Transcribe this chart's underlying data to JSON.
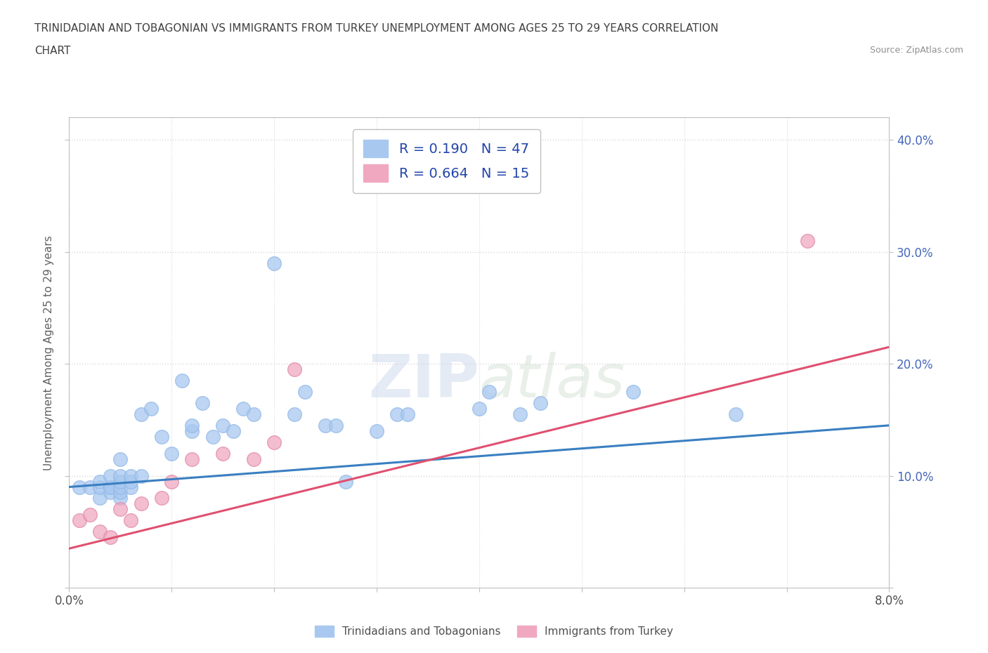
{
  "title_line1": "TRINIDADIAN AND TOBAGONIAN VS IMMIGRANTS FROM TURKEY UNEMPLOYMENT AMONG AGES 25 TO 29 YEARS CORRELATION",
  "title_line2": "CHART",
  "source_text": "Source: ZipAtlas.com",
  "ylabel": "Unemployment Among Ages 25 to 29 years",
  "xlim": [
    0.0,
    0.08
  ],
  "ylim": [
    0.0,
    0.42
  ],
  "xticks": [
    0.0,
    0.01,
    0.02,
    0.03,
    0.04,
    0.05,
    0.06,
    0.07,
    0.08
  ],
  "yticks": [
    0.0,
    0.1,
    0.2,
    0.3,
    0.4
  ],
  "legend_label1": "Trinidadians and Tobagonians",
  "legend_label2": "Immigrants from Turkey",
  "r1": "0.190",
  "n1": "47",
  "r2": "0.664",
  "n2": "15",
  "color1": "#a8c8f0",
  "color2": "#f0a8c0",
  "trendline1_color": "#3a7fc1",
  "trendline2_color": "#e05070",
  "watermark_zip": "ZIP",
  "watermark_atlas": "atlas",
  "scatter1_x": [
    0.001,
    0.002,
    0.003,
    0.003,
    0.003,
    0.004,
    0.004,
    0.004,
    0.004,
    0.005,
    0.005,
    0.005,
    0.005,
    0.005,
    0.005,
    0.006,
    0.006,
    0.006,
    0.007,
    0.007,
    0.008,
    0.009,
    0.01,
    0.011,
    0.012,
    0.012,
    0.013,
    0.014,
    0.015,
    0.016,
    0.017,
    0.018,
    0.02,
    0.022,
    0.023,
    0.025,
    0.026,
    0.027,
    0.03,
    0.032,
    0.033,
    0.04,
    0.041,
    0.044,
    0.046,
    0.055,
    0.065
  ],
  "scatter1_y": [
    0.09,
    0.09,
    0.08,
    0.09,
    0.095,
    0.09,
    0.085,
    0.09,
    0.1,
    0.08,
    0.085,
    0.09,
    0.095,
    0.1,
    0.115,
    0.09,
    0.095,
    0.1,
    0.155,
    0.1,
    0.16,
    0.135,
    0.12,
    0.185,
    0.14,
    0.145,
    0.165,
    0.135,
    0.145,
    0.14,
    0.16,
    0.155,
    0.29,
    0.155,
    0.175,
    0.145,
    0.145,
    0.095,
    0.14,
    0.155,
    0.155,
    0.16,
    0.175,
    0.155,
    0.165,
    0.175,
    0.155
  ],
  "scatter2_x": [
    0.001,
    0.002,
    0.003,
    0.004,
    0.005,
    0.006,
    0.007,
    0.009,
    0.01,
    0.012,
    0.015,
    0.018,
    0.02,
    0.022,
    0.072
  ],
  "scatter2_y": [
    0.06,
    0.065,
    0.05,
    0.045,
    0.07,
    0.06,
    0.075,
    0.08,
    0.095,
    0.115,
    0.12,
    0.115,
    0.13,
    0.195,
    0.31
  ],
  "trendline1_x": [
    0.0,
    0.08
  ],
  "trendline1_y": [
    0.09,
    0.145
  ],
  "trendline2_x": [
    0.0,
    0.08
  ],
  "trendline2_y": [
    0.035,
    0.215
  ],
  "grid_color": "#d8d8d8",
  "bg_color": "#ffffff",
  "title_color": "#404040",
  "axis_label_color": "#606060",
  "tick_label_color": "#4466bb"
}
